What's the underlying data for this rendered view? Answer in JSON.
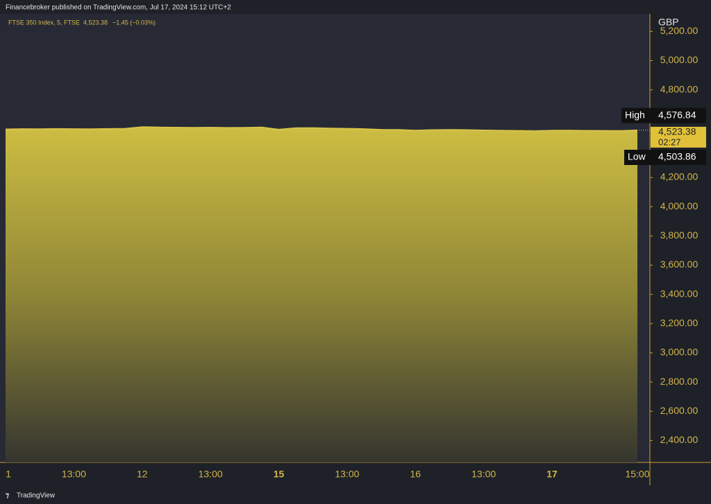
{
  "header": {
    "publisher": "Financebroker published on TradingView.com, Jul 17, 2024 15:12 UTC+2",
    "symbol": "FTSE 350 Index, 5, FTSE",
    "last": "4,523.38",
    "change": "−1.45 (−0.03%)",
    "currency": "GBP",
    "brand": "TradingView"
  },
  "chart_data": {
    "type": "area",
    "color": "#d8c44a",
    "categories": [
      "1",
      null,
      null,
      null,
      "13:00",
      null,
      null,
      null,
      "12",
      null,
      null,
      null,
      "13:00",
      null,
      null,
      null,
      "15",
      null,
      null,
      null,
      "13:00",
      null,
      null,
      null,
      "16",
      null,
      null,
      null,
      "13:00",
      null,
      null,
      null,
      "17",
      null,
      null,
      null,
      null,
      "15:00"
    ],
    "values": [
      4530,
      4532,
      4531,
      4533,
      4532,
      4531,
      4533,
      4534,
      4545,
      4543,
      4542,
      4541,
      4542,
      4540,
      4541,
      4543,
      4528,
      4538,
      4539,
      4536,
      4534,
      4532,
      4527,
      4526,
      4522,
      4525,
      4526,
      4525,
      4523,
      4521,
      4519,
      4517,
      4521,
      4522,
      4520,
      4519,
      4518,
      4523.38
    ],
    "ylim": [
      2250,
      5320
    ],
    "yticks": [
      {
        "value": 2400,
        "label": "2,400.00"
      },
      {
        "value": 2600,
        "label": "2,600.00"
      },
      {
        "value": 2800,
        "label": "2,800.00"
      },
      {
        "value": 3000,
        "label": "3,000.00"
      },
      {
        "value": 3200,
        "label": "3,200.00"
      },
      {
        "value": 3400,
        "label": "3,400.00"
      },
      {
        "value": 3600,
        "label": "3,600.00"
      },
      {
        "value": 3800,
        "label": "3,800.00"
      },
      {
        "value": 4000,
        "label": "4,000.00"
      },
      {
        "value": 4200,
        "label": "4,200.00"
      },
      {
        "value": 4800,
        "label": "4,800.00"
      },
      {
        "value": 5000,
        "label": "5,000.00"
      },
      {
        "value": 5200,
        "label": "5,200.00"
      }
    ],
    "high": {
      "name": "High",
      "value": 4576.84,
      "label": "4,576.84"
    },
    "low": {
      "name": "Low",
      "value": 4503.86,
      "label": "4,503.86"
    },
    "current": {
      "value": 4523.38,
      "label": "4,523.38",
      "countdown": "02:27"
    }
  }
}
